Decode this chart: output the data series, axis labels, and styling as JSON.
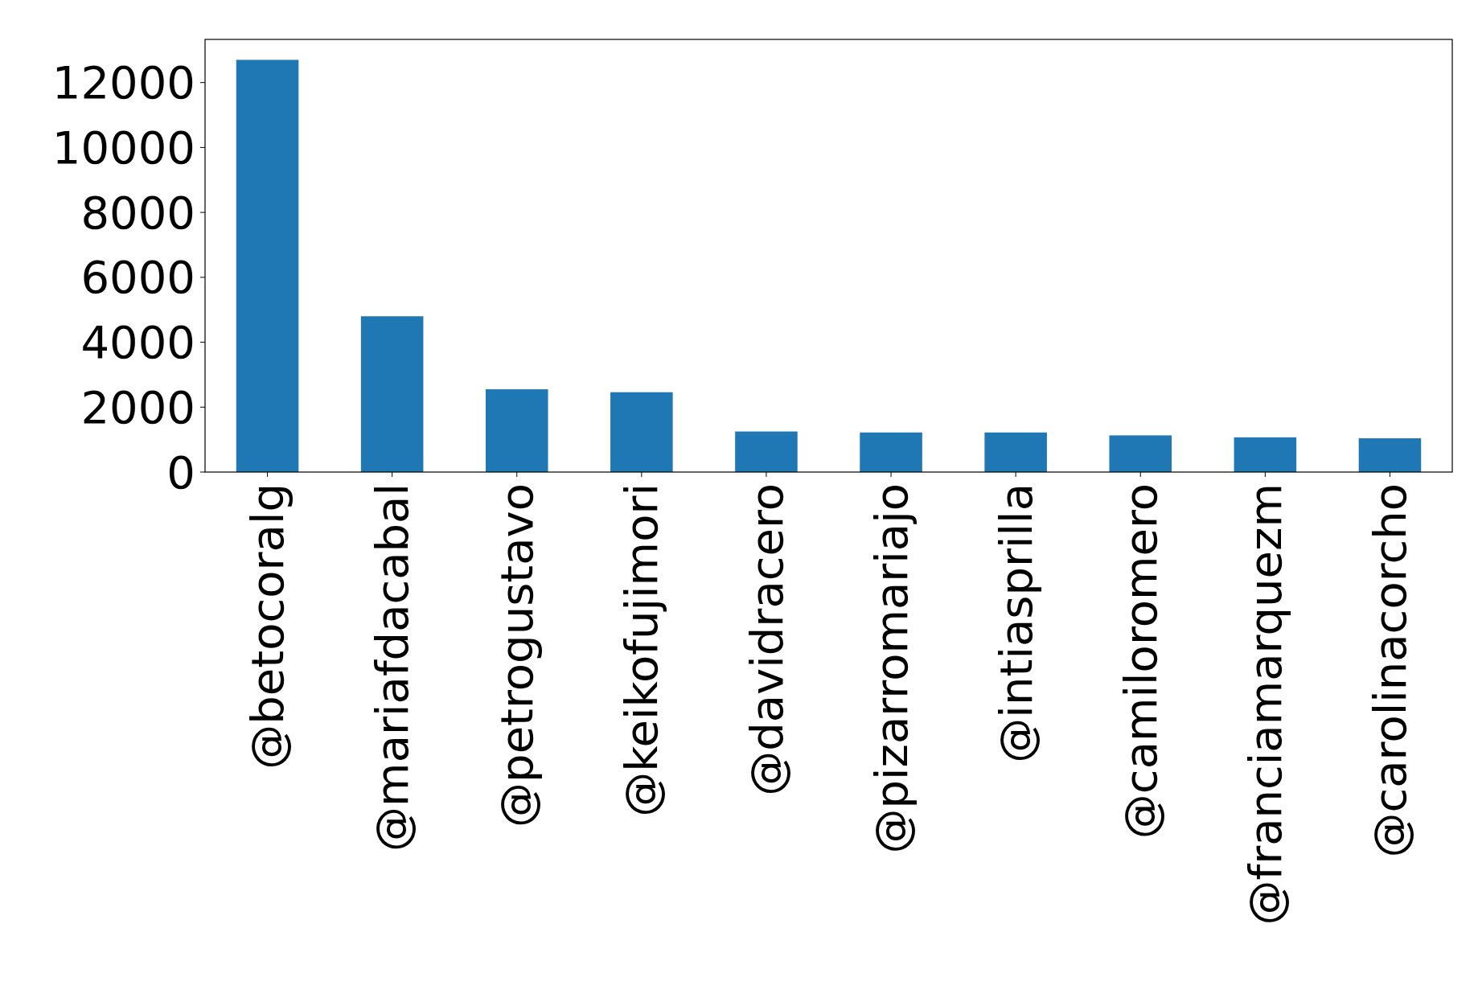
{
  "chart_data": {
    "type": "bar",
    "categories": [
      "@betocoralg",
      "@mariafdacabal",
      "@petrogustavo",
      "@keikofujimori",
      "@davidracero",
      "@pizarromariajo",
      "@intiasprilla",
      "@camiloromero",
      "@franciamarquezm",
      "@carolinacorcho"
    ],
    "values": [
      12700,
      4800,
      2550,
      2460,
      1250,
      1220,
      1220,
      1130,
      1070,
      1040
    ],
    "color": "#1f77b4",
    "ylim": [
      0,
      13330
    ],
    "yticks": [
      0,
      2000,
      4000,
      6000,
      8000,
      10000,
      12000
    ],
    "grid": false
  }
}
